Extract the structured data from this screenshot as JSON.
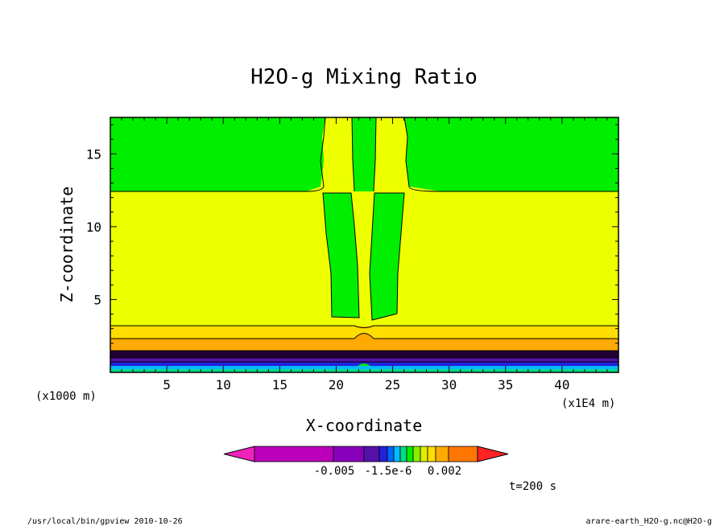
{
  "chart_data": {
    "type": "heatmap",
    "title": "H2O-g Mixing Ratio",
    "xlabel": "X-coordinate",
    "ylabel": "Z-coordinate",
    "x_scale_note": "(x1E4 m)",
    "y_scale_note": "(x1000 m)",
    "xlim": [
      0,
      45
    ],
    "ylim": [
      0,
      17.5
    ],
    "xticks": [
      5,
      10,
      15,
      20,
      25,
      30,
      35,
      40
    ],
    "yticks": [
      5,
      10,
      15
    ],
    "time_label": "t=200 s",
    "colorbar": {
      "tick_labels": [
        "-0.005",
        "-1.5e-6",
        "0.002"
      ],
      "colors": [
        "#ee22bb",
        "#bb00bb",
        "#8800bb",
        "#5511aa",
        "#2222dd",
        "#0066ff",
        "#00bbff",
        "#00dd88",
        "#00ee00",
        "#88ee00",
        "#ddee00",
        "#ffdd00",
        "#ffaa00",
        "#ff7700",
        "#ff2222"
      ]
    },
    "regions": [
      {
        "name": "upper-layer",
        "z_range": [
          12.6,
          17.5
        ],
        "color": "#00ee00"
      },
      {
        "name": "middle-layer",
        "z_range": [
          3.4,
          12.6
        ],
        "color": "#eeff00"
      },
      {
        "name": "column-left",
        "x_range": [
          19.6,
          22.1
        ],
        "z_range": [
          4.1,
          12.6
        ],
        "color": "#00ee00"
      },
      {
        "name": "column-center",
        "x_range": [
          22.2,
          23.5
        ],
        "z_range": [
          12.6,
          17.5
        ],
        "color": "#00ee00"
      },
      {
        "name": "column-right",
        "x_range": [
          23.3,
          25.6
        ],
        "z_range": [
          3.8,
          12.6
        ],
        "color": "#00ee00"
      }
    ]
  },
  "footer": {
    "left": "/usr/local/bin/gpview  2010-10-26",
    "right": "arare-earth_H2O-g.nc@H2O-g"
  }
}
